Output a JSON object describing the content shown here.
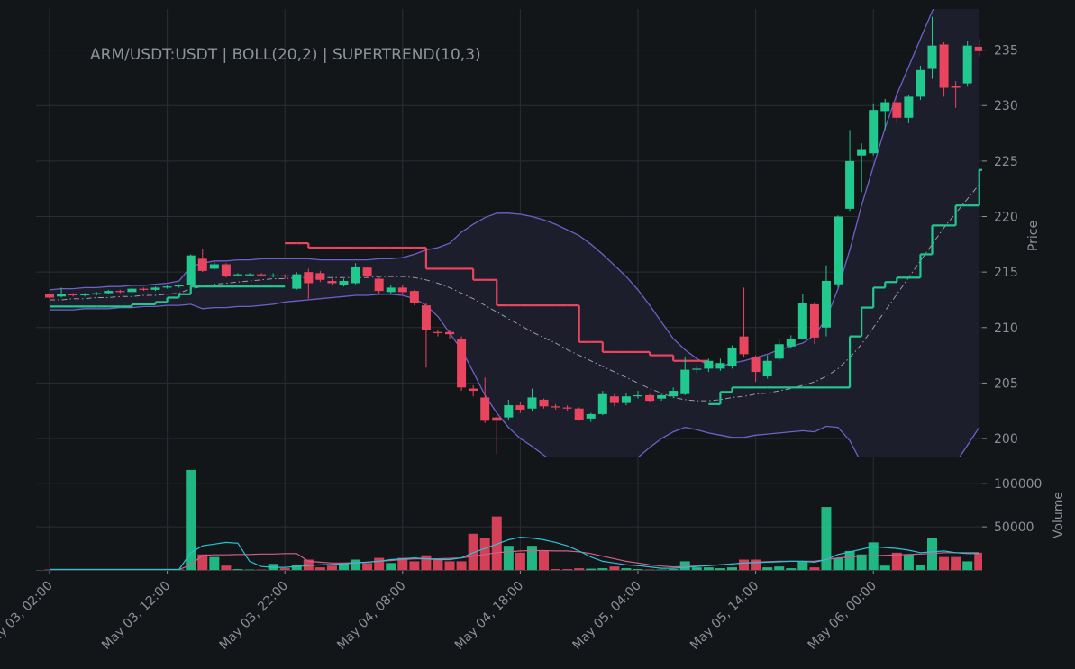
{
  "chart_data": {
    "type": "candlestick",
    "title": "ARM/USDT:USDT | BOLL(20,2) | SUPERTREND(10,3)",
    "ylabel": "Price",
    "volume_label": "Volume",
    "x": [
      "May 03, 02:00",
      "May 03, 03:00",
      "May 03, 04:00",
      "May 03, 05:00",
      "May 03, 06:00",
      "May 03, 07:00",
      "May 03, 08:00",
      "May 03, 09:00",
      "May 03, 10:00",
      "May 03, 11:00",
      "May 03, 12:00",
      "May 03, 13:00",
      "May 03, 14:00",
      "May 03, 15:00",
      "May 03, 16:00",
      "May 03, 17:00",
      "May 03, 18:00",
      "May 03, 19:00",
      "May 03, 20:00",
      "May 03, 21:00",
      "May 03, 22:00",
      "May 03, 23:00",
      "May 04, 00:00",
      "May 04, 01:00",
      "May 04, 02:00",
      "May 04, 03:00",
      "May 04, 04:00",
      "May 04, 05:00",
      "May 04, 06:00",
      "May 04, 07:00",
      "May 04, 08:00",
      "May 04, 09:00",
      "May 04, 10:00",
      "May 04, 11:00",
      "May 04, 12:00",
      "May 04, 13:00",
      "May 04, 14:00",
      "May 04, 15:00",
      "May 04, 16:00",
      "May 04, 17:00",
      "May 04, 18:00",
      "May 04, 19:00",
      "May 04, 20:00",
      "May 04, 21:00",
      "May 04, 22:00",
      "May 04, 23:00",
      "May 05, 00:00",
      "May 05, 01:00",
      "May 05, 02:00",
      "May 05, 03:00",
      "May 05, 04:00",
      "May 05, 05:00",
      "May 05, 06:00",
      "May 05, 07:00",
      "May 05, 08:00",
      "May 05, 09:00",
      "May 05, 10:00",
      "May 05, 11:00",
      "May 05, 12:00",
      "May 05, 13:00",
      "May 05, 14:00",
      "May 05, 15:00",
      "May 05, 16:00",
      "May 05, 17:00",
      "May 05, 18:00",
      "May 05, 19:00",
      "May 05, 20:00",
      "May 05, 21:00",
      "May 05, 22:00",
      "May 05, 23:00",
      "May 06, 00:00",
      "May 06, 01:00",
      "May 06, 02:00",
      "May 06, 03:00",
      "May 06, 04:00",
      "May 06, 05:00",
      "May 06, 06:00",
      "May 06, 07:00",
      "May 06, 08:00",
      "May 06, 09:00"
    ],
    "open": [
      213.0,
      212.8,
      213.0,
      212.9,
      213.0,
      213.1,
      213.3,
      213.2,
      213.5,
      213.4,
      213.6,
      213.7,
      213.8,
      216.2,
      215.3,
      215.7,
      214.7,
      214.8,
      214.8,
      214.7,
      214.7,
      213.5,
      215.0,
      214.9,
      214.2,
      213.8,
      214.0,
      215.4,
      214.4,
      213.2,
      213.6,
      213.3,
      212.0,
      209.6,
      209.6,
      209.0,
      204.5,
      203.7,
      201.9,
      201.9,
      203.0,
      202.7,
      203.5,
      202.9,
      202.8,
      202.7,
      201.8,
      202.2,
      203.8,
      203.2,
      203.8,
      203.9,
      203.6,
      203.8,
      204.0,
      206.2,
      206.3,
      206.3,
      206.5,
      209.2,
      207.3,
      205.6,
      207.2,
      208.3,
      209.0,
      212.1,
      210.0,
      213.9,
      220.7,
      225.5,
      225.7,
      229.5,
      230.3,
      228.9,
      230.8,
      233.3,
      235.5,
      231.8,
      232.0,
      235.3
    ],
    "high": [
      213.1,
      213.6,
      213.1,
      213.1,
      213.2,
      213.4,
      213.4,
      213.6,
      213.6,
      213.7,
      213.8,
      213.9,
      216.6,
      217.1,
      215.9,
      215.8,
      214.9,
      214.9,
      214.9,
      214.9,
      214.8,
      215.0,
      215.3,
      215.1,
      214.4,
      214.4,
      215.8,
      215.5,
      214.5,
      213.8,
      213.8,
      213.4,
      212.2,
      209.8,
      209.8,
      209.2,
      204.8,
      205.5,
      202.1,
      203.5,
      203.3,
      204.5,
      203.6,
      203.1,
      203.0,
      202.8,
      202.3,
      204.3,
      204.0,
      204.1,
      204.3,
      204.0,
      204.0,
      204.6,
      207.4,
      206.6,
      207.2,
      207.2,
      208.4,
      213.6,
      207.5,
      207.5,
      208.9,
      209.3,
      213.0,
      212.3,
      215.6,
      220.1,
      227.8,
      226.6,
      230.2,
      230.6,
      231.2,
      231.0,
      233.6,
      238.0,
      235.7,
      232.2,
      235.8,
      236.0
    ],
    "low": [
      212.6,
      212.7,
      212.8,
      212.8,
      212.9,
      213.0,
      213.1,
      213.1,
      213.3,
      213.3,
      213.5,
      213.6,
      213.4,
      215.0,
      215.2,
      214.5,
      214.6,
      214.7,
      214.6,
      214.5,
      214.4,
      213.4,
      212.6,
      214.1,
      213.8,
      213.7,
      213.9,
      214.5,
      213.0,
      213.0,
      213.0,
      212.0,
      206.4,
      209.2,
      209.0,
      204.3,
      203.8,
      201.4,
      198.6,
      201.7,
      202.3,
      202.5,
      202.7,
      202.6,
      202.5,
      201.6,
      201.5,
      202.1,
      202.9,
      203.0,
      203.6,
      203.3,
      203.4,
      203.7,
      203.9,
      205.9,
      206.0,
      206.1,
      206.3,
      207.3,
      205.1,
      205.4,
      207.0,
      208.1,
      208.9,
      208.5,
      209.2,
      213.6,
      220.5,
      222.2,
      225.5,
      227.8,
      228.4,
      228.4,
      230.5,
      232.4,
      230.8,
      229.8,
      231.7,
      234.4
    ],
    "close": [
      212.7,
      213.0,
      212.9,
      213.0,
      213.1,
      213.3,
      213.2,
      213.5,
      213.4,
      213.6,
      213.7,
      213.8,
      216.5,
      215.1,
      215.7,
      214.6,
      214.8,
      214.8,
      214.7,
      214.7,
      214.6,
      214.8,
      214.0,
      214.3,
      214.0,
      214.2,
      215.5,
      214.6,
      213.3,
      213.6,
      213.2,
      212.2,
      209.8,
      209.5,
      209.4,
      204.6,
      204.3,
      201.6,
      201.6,
      203.0,
      202.6,
      203.7,
      202.9,
      202.8,
      202.7,
      201.7,
      202.2,
      204.0,
      203.2,
      203.8,
      203.9,
      203.4,
      203.9,
      204.3,
      206.2,
      206.3,
      207.0,
      206.8,
      208.2,
      207.6,
      206.0,
      207.0,
      208.5,
      209.0,
      212.2,
      209.1,
      214.2,
      220.0,
      225.0,
      226.0,
      229.6,
      230.3,
      228.9,
      230.8,
      233.2,
      235.4,
      231.6,
      231.6,
      235.4,
      234.9
    ],
    "up_color": "#22c98e",
    "down_color": "#e9455f",
    "ylim": [
      198.3,
      238.7
    ],
    "yticks": [
      200,
      205,
      210,
      215,
      220,
      225,
      230,
      235
    ],
    "grid": true,
    "bollinger": {
      "color": "#6f60c8",
      "middle_color": "#9a9aa8",
      "fill": "#1d1e2c",
      "upper": [
        213.4,
        213.5,
        213.5,
        213.6,
        213.6,
        213.7,
        213.7,
        213.8,
        213.8,
        213.9,
        214.0,
        214.2,
        215.5,
        215.8,
        216.0,
        216.0,
        216.1,
        216.1,
        216.2,
        216.2,
        216.2,
        216.2,
        216.2,
        216.1,
        216.1,
        216.1,
        216.1,
        216.1,
        216.2,
        216.2,
        216.3,
        216.6,
        217.0,
        217.2,
        217.6,
        218.6,
        219.3,
        219.9,
        220.3,
        220.3,
        220.2,
        220.0,
        219.7,
        219.3,
        218.8,
        218.3,
        217.5,
        216.6,
        215.6,
        214.6,
        213.4,
        212.0,
        210.5,
        209.0,
        208.0,
        207.2,
        206.6,
        206.5,
        206.8,
        207.0,
        207.3,
        207.6,
        208.0,
        208.3,
        208.6,
        209.3,
        210.8,
        213.5,
        217.0,
        221.0,
        224.5,
        228.0,
        231.0,
        233.5,
        236.0,
        238.5,
        240.5,
        242.5,
        244.0,
        245.5
      ],
      "middle": [
        212.5,
        212.5,
        212.6,
        212.6,
        212.7,
        212.7,
        212.8,
        212.8,
        212.9,
        212.9,
        213.0,
        213.1,
        213.5,
        213.7,
        213.9,
        214.0,
        214.1,
        214.2,
        214.3,
        214.4,
        214.4,
        214.5,
        214.5,
        214.5,
        214.5,
        214.5,
        214.5,
        214.5,
        214.6,
        214.6,
        214.6,
        214.5,
        214.3,
        214.0,
        213.6,
        213.1,
        212.6,
        212.0,
        211.4,
        210.8,
        210.2,
        209.6,
        209.1,
        208.6,
        208.0,
        207.5,
        207.0,
        206.5,
        206.0,
        205.5,
        205.0,
        204.5,
        204.1,
        203.7,
        203.5,
        203.4,
        203.4,
        203.5,
        203.7,
        203.8,
        204.0,
        204.1,
        204.3,
        204.5,
        204.8,
        205.1,
        205.6,
        206.3,
        207.3,
        208.5,
        210.0,
        211.5,
        213.0,
        214.5,
        216.0,
        217.5,
        219.0,
        220.3,
        221.6,
        222.9
      ],
      "lower": [
        211.6,
        211.6,
        211.6,
        211.7,
        211.7,
        211.7,
        211.8,
        211.8,
        211.9,
        211.9,
        212.0,
        212.0,
        212.1,
        211.7,
        211.8,
        211.8,
        211.9,
        211.9,
        212.0,
        212.1,
        212.3,
        212.4,
        212.5,
        212.6,
        212.7,
        212.8,
        212.9,
        212.9,
        213.0,
        213.0,
        212.9,
        212.6,
        212.0,
        211.0,
        209.5,
        208.0,
        206.0,
        203.9,
        202.3,
        201.0,
        200.0,
        199.3,
        198.5,
        197.8,
        197.2,
        196.8,
        196.5,
        196.5,
        196.8,
        197.5,
        198.3,
        199.2,
        200.0,
        200.6,
        201.0,
        200.8,
        200.5,
        200.3,
        200.1,
        200.1,
        200.3,
        200.4,
        200.5,
        200.6,
        200.7,
        200.6,
        201.1,
        201.0,
        199.8,
        197.8,
        196.5,
        195.8,
        195.5,
        195.5,
        195.6,
        196.0,
        196.8,
        197.8,
        199.4,
        201.0
      ]
    },
    "supertrend": {
      "up_color": "#22c98e",
      "down_color": "#e9455f",
      "up": [
        211.9,
        211.9,
        211.9,
        211.9,
        211.9,
        211.9,
        211.9,
        212.1,
        212.1,
        212.3,
        212.7,
        213.0,
        213.7,
        213.7,
        213.7,
        213.7,
        213.7,
        213.7,
        213.7,
        213.7,
        null,
        null,
        null,
        null,
        null,
        null,
        null,
        null,
        null,
        null,
        null,
        null,
        null,
        null,
        null,
        null,
        null,
        null,
        null,
        null,
        null,
        null,
        null,
        null,
        null,
        null,
        null,
        null,
        null,
        null,
        null,
        null,
        null,
        null,
        null,
        null,
        203.1,
        204.2,
        204.6,
        204.6,
        204.6,
        204.6,
        204.6,
        204.6,
        204.6,
        204.6,
        204.6,
        204.6,
        209.2,
        211.8,
        213.6,
        214.1,
        214.5,
        214.5,
        216.6,
        219.2,
        219.2,
        221.0,
        221.0,
        224.2
      ],
      "down": [
        null,
        null,
        null,
        null,
        null,
        null,
        null,
        null,
        null,
        null,
        null,
        null,
        null,
        null,
        null,
        null,
        null,
        null,
        null,
        null,
        217.6,
        217.6,
        217.2,
        217.2,
        217.2,
        217.2,
        217.2,
        217.2,
        217.2,
        217.2,
        217.2,
        217.2,
        215.3,
        215.3,
        215.3,
        215.3,
        214.3,
        214.3,
        212.0,
        212.0,
        212.0,
        212.0,
        212.0,
        212.0,
        212.0,
        208.7,
        208.7,
        207.8,
        207.8,
        207.8,
        207.8,
        207.5,
        207.5,
        207.0,
        207.0,
        207.0,
        null,
        null,
        null,
        null,
        null,
        null,
        null,
        null,
        null,
        null,
        null,
        null,
        null,
        null,
        null,
        null,
        null,
        null,
        null,
        null,
        null,
        null,
        null,
        null
      ]
    },
    "volume": [
      500,
      500,
      500,
      500,
      500,
      500,
      500,
      500,
      500,
      500,
      500,
      500,
      116000,
      18000,
      15000,
      5000,
      1000,
      500,
      500,
      7000,
      2000,
      6000,
      12000,
      3000,
      5000,
      8000,
      12000,
      8000,
      14000,
      8000,
      14000,
      10000,
      17000,
      12000,
      10000,
      10000,
      42000,
      37000,
      62000,
      28000,
      20000,
      28000,
      22000,
      1000,
      1000,
      2000,
      1500,
      2000,
      4000,
      2000,
      1000,
      500,
      500,
      1000,
      10000,
      3000,
      3000,
      2000,
      3000,
      12000,
      12000,
      3000,
      4000,
      2000,
      10000,
      3000,
      73000,
      14000,
      22000,
      18000,
      32000,
      5000,
      20000,
      18000,
      6000,
      37000,
      15000,
      15000,
      10000,
      20000
    ],
    "volume_ylim": [
      0,
      118000
    ],
    "volume_yticks": [
      50000,
      100000
    ],
    "volume_ma": [
      {
        "color": "#d0608a",
        "values": [
          500,
          500,
          500,
          500,
          500,
          500,
          500,
          500,
          500,
          500,
          500,
          500,
          6000,
          17000,
          17500,
          17500,
          18000,
          18000,
          18500,
          18500,
          19000,
          19000,
          10000,
          9000,
          8000,
          8000,
          8500,
          9000,
          10000,
          11000,
          12000,
          13000,
          13000,
          13000,
          13500,
          14000,
          16000,
          18000,
          20000,
          21000,
          22000,
          22500,
          22500,
          22000,
          22000,
          21000,
          19000,
          16000,
          13000,
          10000,
          8000,
          6000,
          4500,
          3500,
          4000,
          4500,
          5000,
          6000,
          7000,
          8000,
          9000,
          9500,
          10000,
          10000,
          10000,
          10000,
          12000,
          14000,
          15000,
          16000,
          16500,
          17000,
          17500,
          18000,
          18500,
          19000,
          20000,
          20000,
          20000,
          20000
        ]
      },
      {
        "color": "#27c4d8",
        "values": [
          500,
          500,
          500,
          500,
          500,
          500,
          500,
          500,
          500,
          500,
          500,
          500,
          20000,
          28000,
          30000,
          32000,
          31000,
          10000,
          4000,
          3000,
          3000,
          4000,
          5000,
          6000,
          6500,
          7000,
          8000,
          9000,
          10000,
          12000,
          13000,
          14000,
          13000,
          12000,
          12000,
          14000,
          20000,
          25000,
          30000,
          35000,
          38000,
          37000,
          35000,
          32000,
          28000,
          22000,
          15000,
          10000,
          8000,
          6000,
          5000,
          3500,
          2000,
          2000,
          3000,
          4000,
          5000,
          6000,
          7000,
          8000,
          8500,
          9000,
          9500,
          10000,
          10000,
          9000,
          12000,
          18000,
          21000,
          24000,
          27000,
          26000,
          25000,
          23000,
          20000,
          21000,
          22000,
          20000,
          19000,
          19000
        ]
      }
    ]
  }
}
